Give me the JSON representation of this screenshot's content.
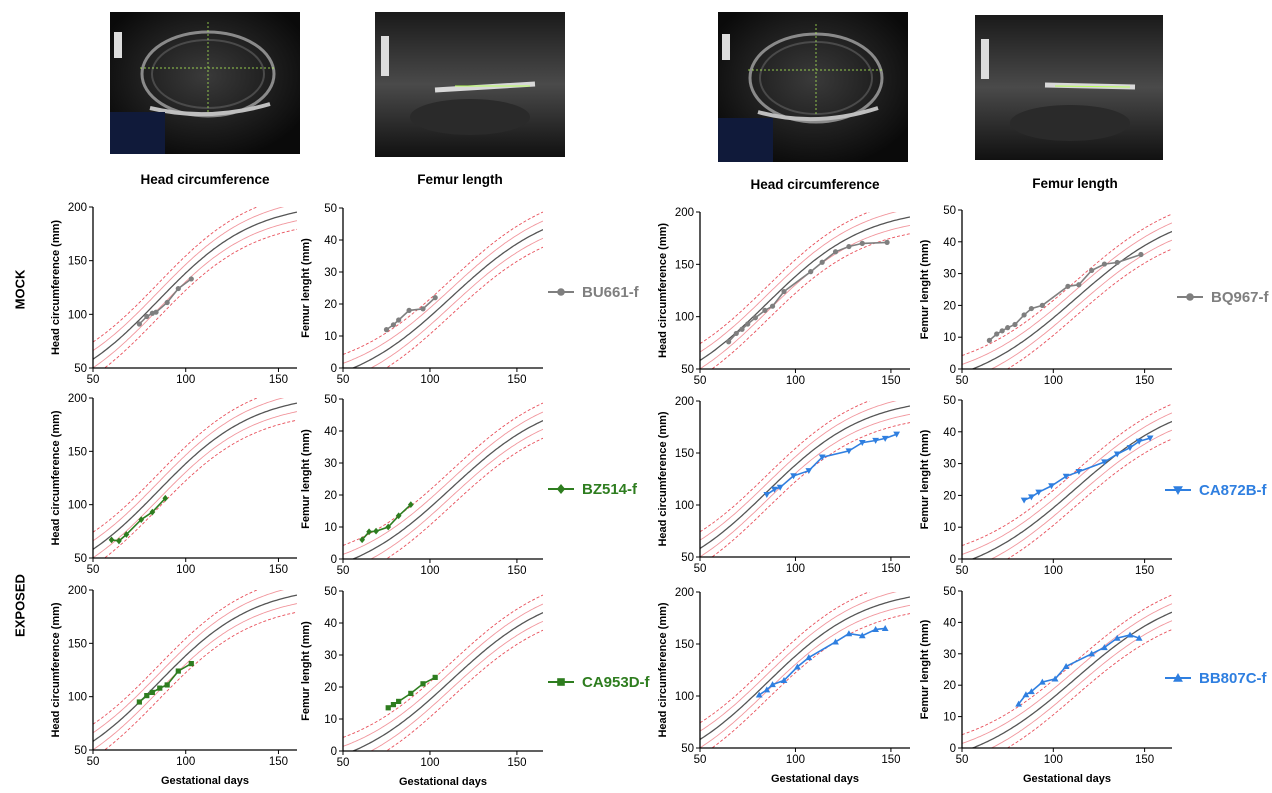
{
  "column_titles": {
    "hc_left": "Head circumference",
    "fl_left": "Femur length",
    "hc_right": "Head circumference",
    "fl_right": "Femur length"
  },
  "row_labels": {
    "mock": "MOCK",
    "exposed": "EXPOSED"
  },
  "x_axis_label": "Gestational days",
  "y_axis_label_hc": "Head circumference (mm)",
  "y_axis_label_fl": "Femur lenght (mm)",
  "colors": {
    "mock": "#7f7f7f",
    "exposed_left": "#2e7d1f",
    "exposed_right": "#2f7fe0",
    "ref_mean": "#555555",
    "ref_band": "#e8505b"
  },
  "legends": [
    {
      "id": "BU661-f",
      "label": "BU661-f",
      "color": "#7f7f7f",
      "marker": "circle"
    },
    {
      "id": "BZ514-f",
      "label": "BZ514-f",
      "color": "#2e7d1f",
      "marker": "diamond"
    },
    {
      "id": "CA953D-f",
      "label": "CA953D-f",
      "color": "#2e7d1f",
      "marker": "square"
    },
    {
      "id": "BQ967-f",
      "label": "BQ967-f",
      "color": "#7f7f7f",
      "marker": "circle"
    },
    {
      "id": "CA872B-f",
      "label": "CA872B-f",
      "color": "#2f7fe0",
      "marker": "triangle-down"
    },
    {
      "id": "BB807C-f",
      "label": "BB807C-f",
      "color": "#2f7fe0",
      "marker": "triangle-up"
    }
  ],
  "chart_data": [
    {
      "type": "line",
      "panel": "hc-BU661",
      "subject": "BU661-f",
      "measure": "hc",
      "xlim": [
        50,
        160
      ],
      "ylim": [
        50,
        200
      ],
      "xticks": [
        50,
        100,
        150
      ],
      "yticks": [
        50,
        100,
        150,
        200
      ],
      "color": "#7f7f7f",
      "marker": "circle",
      "x": [
        75,
        79,
        82,
        84,
        90,
        96,
        103
      ],
      "y": [
        91,
        98,
        101,
        102,
        111,
        124,
        133
      ]
    },
    {
      "type": "line",
      "panel": "fl-BU661",
      "subject": "BU661-f",
      "measure": "fl",
      "xlim": [
        50,
        165
      ],
      "ylim": [
        0,
        50
      ],
      "xticks": [
        50,
        100,
        150
      ],
      "yticks": [
        0,
        10,
        20,
        30,
        40,
        50
      ],
      "color": "#7f7f7f",
      "marker": "circle",
      "x": [
        75,
        79,
        82,
        88,
        96,
        103
      ],
      "y": [
        12,
        13.5,
        15,
        18,
        18.5,
        22
      ]
    },
    {
      "type": "line",
      "panel": "hc-BZ514",
      "subject": "BZ514-f",
      "measure": "hc",
      "xlim": [
        50,
        160
      ],
      "ylim": [
        50,
        200
      ],
      "xticks": [
        50,
        100,
        150
      ],
      "yticks": [
        50,
        100,
        150,
        200
      ],
      "color": "#2e7d1f",
      "marker": "diamond",
      "x": [
        60,
        64,
        68,
        76,
        82,
        89
      ],
      "y": [
        67,
        66,
        72,
        86,
        93,
        106
      ]
    },
    {
      "type": "line",
      "panel": "fl-BZ514",
      "subject": "BZ514-f",
      "measure": "fl",
      "xlim": [
        50,
        165
      ],
      "ylim": [
        0,
        50
      ],
      "xticks": [
        50,
        100,
        150
      ],
      "yticks": [
        0,
        10,
        20,
        30,
        40,
        50
      ],
      "color": "#2e7d1f",
      "marker": "diamond",
      "x": [
        61,
        65,
        69,
        76,
        82,
        89
      ],
      "y": [
        6,
        8.5,
        8.7,
        10,
        13.5,
        17
      ]
    },
    {
      "type": "line",
      "panel": "hc-CA953D",
      "subject": "CA953D-f",
      "measure": "hc",
      "xlim": [
        50,
        160
      ],
      "ylim": [
        50,
        200
      ],
      "xticks": [
        50,
        100,
        150
      ],
      "yticks": [
        50,
        100,
        150,
        200
      ],
      "color": "#2e7d1f",
      "marker": "square",
      "x": [
        75,
        79,
        82,
        86,
        90,
        96,
        103
      ],
      "y": [
        95,
        101,
        104,
        108,
        111,
        124,
        131
      ]
    },
    {
      "type": "line",
      "panel": "fl-CA953D",
      "subject": "CA953D-f",
      "measure": "fl",
      "xlim": [
        50,
        165
      ],
      "ylim": [
        0,
        50
      ],
      "xticks": [
        50,
        100,
        150
      ],
      "yticks": [
        0,
        10,
        20,
        30,
        40,
        50
      ],
      "color": "#2e7d1f",
      "marker": "square",
      "x": [
        76,
        79,
        82,
        89,
        96,
        103
      ],
      "y": [
        13.5,
        14.5,
        15.5,
        18,
        21,
        23
      ]
    },
    {
      "type": "line",
      "panel": "hc-BQ967",
      "subject": "BQ967-f",
      "measure": "hc",
      "xlim": [
        50,
        160
      ],
      "ylim": [
        50,
        200
      ],
      "xticks": [
        50,
        100,
        150
      ],
      "yticks": [
        50,
        100,
        150,
        200
      ],
      "color": "#7f7f7f",
      "marker": "circle",
      "x": [
        65,
        69,
        72,
        75,
        79,
        84,
        88,
        94,
        108,
        114,
        121,
        128,
        135,
        148
      ],
      "y": [
        76,
        84,
        88,
        93,
        99,
        106,
        110,
        124,
        143,
        152,
        162,
        167,
        170,
        171
      ]
    },
    {
      "type": "line",
      "panel": "fl-BQ967",
      "subject": "BQ967-f",
      "measure": "fl",
      "xlim": [
        50,
        165
      ],
      "ylim": [
        0,
        50
      ],
      "xticks": [
        50,
        100,
        150
      ],
      "yticks": [
        0,
        10,
        20,
        30,
        40,
        50
      ],
      "color": "#7f7f7f",
      "marker": "circle",
      "x": [
        65,
        69,
        72,
        75,
        79,
        84,
        88,
        94,
        108,
        114,
        121,
        128,
        135,
        148
      ],
      "y": [
        9,
        11,
        12,
        13,
        14,
        17,
        19,
        20,
        26,
        26.5,
        31,
        33,
        33.5,
        36
      ]
    },
    {
      "type": "line",
      "panel": "hc-CA872B",
      "subject": "CA872B-f",
      "measure": "hc",
      "xlim": [
        50,
        160
      ],
      "ylim": [
        50,
        200
      ],
      "xticks": [
        50,
        100,
        150
      ],
      "yticks": [
        50,
        100,
        150,
        200
      ],
      "color": "#2f7fe0",
      "marker": "triangle-down",
      "x": [
        85,
        89,
        92,
        99,
        107,
        114,
        128,
        135,
        142,
        147,
        153
      ],
      "y": [
        110,
        115,
        117,
        128,
        133,
        146,
        152,
        160,
        162,
        164,
        168
      ]
    },
    {
      "type": "line",
      "panel": "fl-CA872B",
      "subject": "CA872B-f",
      "measure": "fl",
      "xlim": [
        50,
        165
      ],
      "ylim": [
        0,
        50
      ],
      "xticks": [
        50,
        100,
        150
      ],
      "yticks": [
        0,
        10,
        20,
        30,
        40,
        50
      ],
      "color": "#2f7fe0",
      "marker": "triangle-down",
      "x": [
        84,
        88,
        92,
        99,
        107,
        114,
        128,
        135,
        142,
        147,
        153
      ],
      "y": [
        18.5,
        19.5,
        21,
        23,
        26,
        27.5,
        30.5,
        33,
        35,
        37,
        38
      ]
    },
    {
      "type": "line",
      "panel": "hc-BB807C",
      "subject": "BB807C-f",
      "measure": "hc",
      "xlim": [
        50,
        160
      ],
      "ylim": [
        50,
        200
      ],
      "xticks": [
        50,
        100,
        150
      ],
      "yticks": [
        50,
        100,
        150,
        200
      ],
      "color": "#2f7fe0",
      "marker": "triangle-up",
      "x": [
        81,
        85,
        88,
        94,
        101,
        107,
        121,
        128,
        135,
        142,
        147
      ],
      "y": [
        101,
        106,
        111,
        115,
        128,
        137,
        152,
        160,
        158,
        164,
        165
      ]
    },
    {
      "type": "line",
      "panel": "fl-BB807C",
      "subject": "BB807C-f",
      "measure": "fl",
      "xlim": [
        50,
        165
      ],
      "ylim": [
        0,
        50
      ],
      "xticks": [
        50,
        100,
        150
      ],
      "yticks": [
        0,
        10,
        20,
        30,
        40,
        50
      ],
      "color": "#2f7fe0",
      "marker": "triangle-up",
      "x": [
        81,
        85,
        88,
        94,
        101,
        107,
        121,
        128,
        135,
        142,
        147
      ],
      "y": [
        14,
        17,
        18,
        21,
        22,
        26,
        30,
        32,
        35,
        36,
        35
      ]
    }
  ]
}
